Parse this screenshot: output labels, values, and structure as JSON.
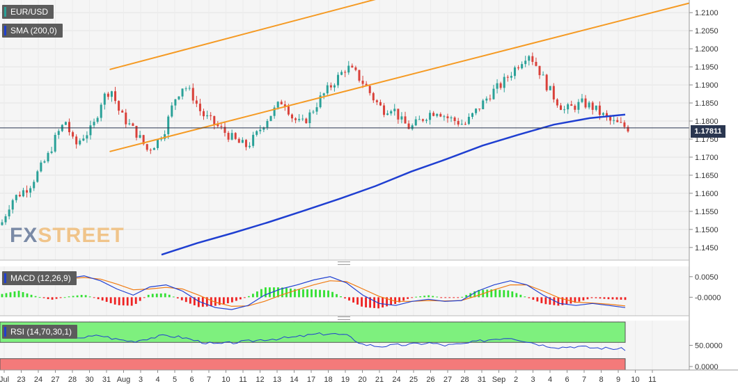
{
  "instrument": "EUR/USD",
  "indicator_labels": {
    "sma": "SMA (200,0)",
    "macd": "MACD (12,26,9)",
    "rsi": "RSI (14,70,30,1)"
  },
  "last_price_label": "1.17811",
  "watermark": {
    "fx": "FX",
    "street": "STREET"
  },
  "colors": {
    "up_candle": "#2aa198",
    "down_candle": "#d9413a",
    "sma": "#1f3fd1",
    "channel": "#f59a23",
    "macd_line": "#1f3fd1",
    "signal_line": "#f07a10",
    "hist_pos": "#33e033",
    "hist_neg": "#ee2222",
    "rsi_line": "#1f3fd1",
    "overbought_zone": "#7ef07e",
    "oversold_zone": "#f47a7a"
  },
  "chart_data": {
    "type": "candlestick",
    "x_tick_labels": [
      "Jul",
      "23",
      "24",
      "27",
      "28",
      "30",
      "31",
      "Aug",
      "3",
      "4",
      "5",
      "6",
      "7",
      "10",
      "11",
      "12",
      "13",
      "14",
      "17",
      "18",
      "19",
      "20",
      "21",
      "24",
      "25",
      "26",
      "27",
      "28",
      "31",
      "Sep",
      "2",
      "3",
      "4",
      "6",
      "7",
      "8",
      "9",
      "10",
      "11"
    ],
    "price_axis": {
      "range": [
        1.1415,
        1.2135
      ],
      "ticks": [
        "1.2100",
        "1.2050",
        "1.2000",
        "1.1950",
        "1.1900",
        "1.1850",
        "1.1800",
        "1.1750",
        "1.1700",
        "1.1650",
        "1.1600",
        "1.1550",
        "1.1500",
        "1.1450"
      ]
    },
    "last_price": 1.17811,
    "ohlc_close_path": [
      1.152,
      1.158,
      1.16,
      1.162,
      1.166,
      1.17,
      1.176,
      1.18,
      1.173,
      1.176,
      1.178,
      1.186,
      1.189,
      1.182,
      1.179,
      1.176,
      1.172,
      1.174,
      1.178,
      1.186,
      1.19,
      1.187,
      1.182,
      1.18,
      1.178,
      1.176,
      1.174,
      1.173,
      1.176,
      1.18,
      1.183,
      1.186,
      1.181,
      1.179,
      1.182,
      1.186,
      1.189,
      1.192,
      1.195,
      1.193,
      1.19,
      1.186,
      1.183,
      1.184,
      1.18,
      1.178,
      1.18,
      1.182,
      1.183,
      1.181,
      1.18,
      1.179,
      1.182,
      1.185,
      1.188,
      1.19,
      1.193,
      1.196,
      1.199,
      1.195,
      1.19,
      1.186,
      1.183,
      1.184,
      1.185,
      1.184,
      1.182,
      1.18,
      1.179,
      1.1781
    ],
    "sma_200_path": [
      1.143,
      1.1462,
      1.149,
      1.152,
      1.1552,
      1.1585,
      1.162,
      1.166,
      1.1695,
      1.1732,
      1.1762,
      1.179,
      1.1808,
      1.1818
    ],
    "channel_upper": [
      {
        "x_label": "27",
        "value": 1.1903
      },
      {
        "x_label": "11",
        "value": 1.204
      }
    ],
    "channel_lower": [
      {
        "x_label": "27",
        "value": 1.1677
      },
      {
        "x_label": "11",
        "value": 1.181
      }
    ],
    "macd": {
      "axis_ticks": [
        "0.0050",
        "-0.0000"
      ],
      "range": [
        -0.0045,
        0.0075
      ],
      "line": [
        0.0045,
        0.006,
        0.005,
        0.004,
        0.0046,
        0.0052,
        0.004,
        0.002,
        0.0005,
        0.0025,
        0.003,
        0.0015,
        -0.001,
        -0.0025,
        -0.003,
        -0.002,
        0.0005,
        0.002,
        0.003,
        0.0042,
        0.005,
        0.0035,
        0.0005,
        -0.0015,
        -0.002,
        -0.001,
        -0.0005,
        -0.001,
        -0.0008,
        0.0015,
        0.003,
        0.004,
        0.003,
        0.0005,
        -0.0015,
        -0.002,
        -0.0015,
        -0.002,
        -0.0025
      ],
      "signal": [
        0.004,
        0.005,
        0.0048,
        0.0044,
        0.0045,
        0.0048,
        0.0044,
        0.0032,
        0.0018,
        0.002,
        0.0024,
        0.002,
        0.0005,
        -0.0012,
        -0.0022,
        -0.0021,
        -0.001,
        0.0005,
        0.0018,
        0.003,
        0.004,
        0.0038,
        0.002,
        0.0002,
        -0.001,
        -0.001,
        -0.0008,
        -0.0009,
        -0.0008,
        0.0004,
        0.0018,
        0.003,
        0.003,
        0.0015,
        -0.0002,
        -0.0012,
        -0.0014,
        -0.0017,
        -0.0021
      ]
    },
    "rsi": {
      "axis_ticks": [
        "50.0000",
        "0.0000"
      ],
      "range": [
        0,
        100
      ],
      "overbought": 70,
      "oversold": 30,
      "line": [
        72,
        74,
        70,
        72,
        68,
        66,
        70,
        62,
        58,
        65,
        70,
        66,
        58,
        52,
        55,
        58,
        62,
        64,
        67,
        72,
        74,
        70,
        52,
        48,
        50,
        52,
        55,
        50,
        52,
        58,
        63,
        66,
        58,
        50,
        46,
        48,
        45,
        44,
        42
      ]
    }
  }
}
